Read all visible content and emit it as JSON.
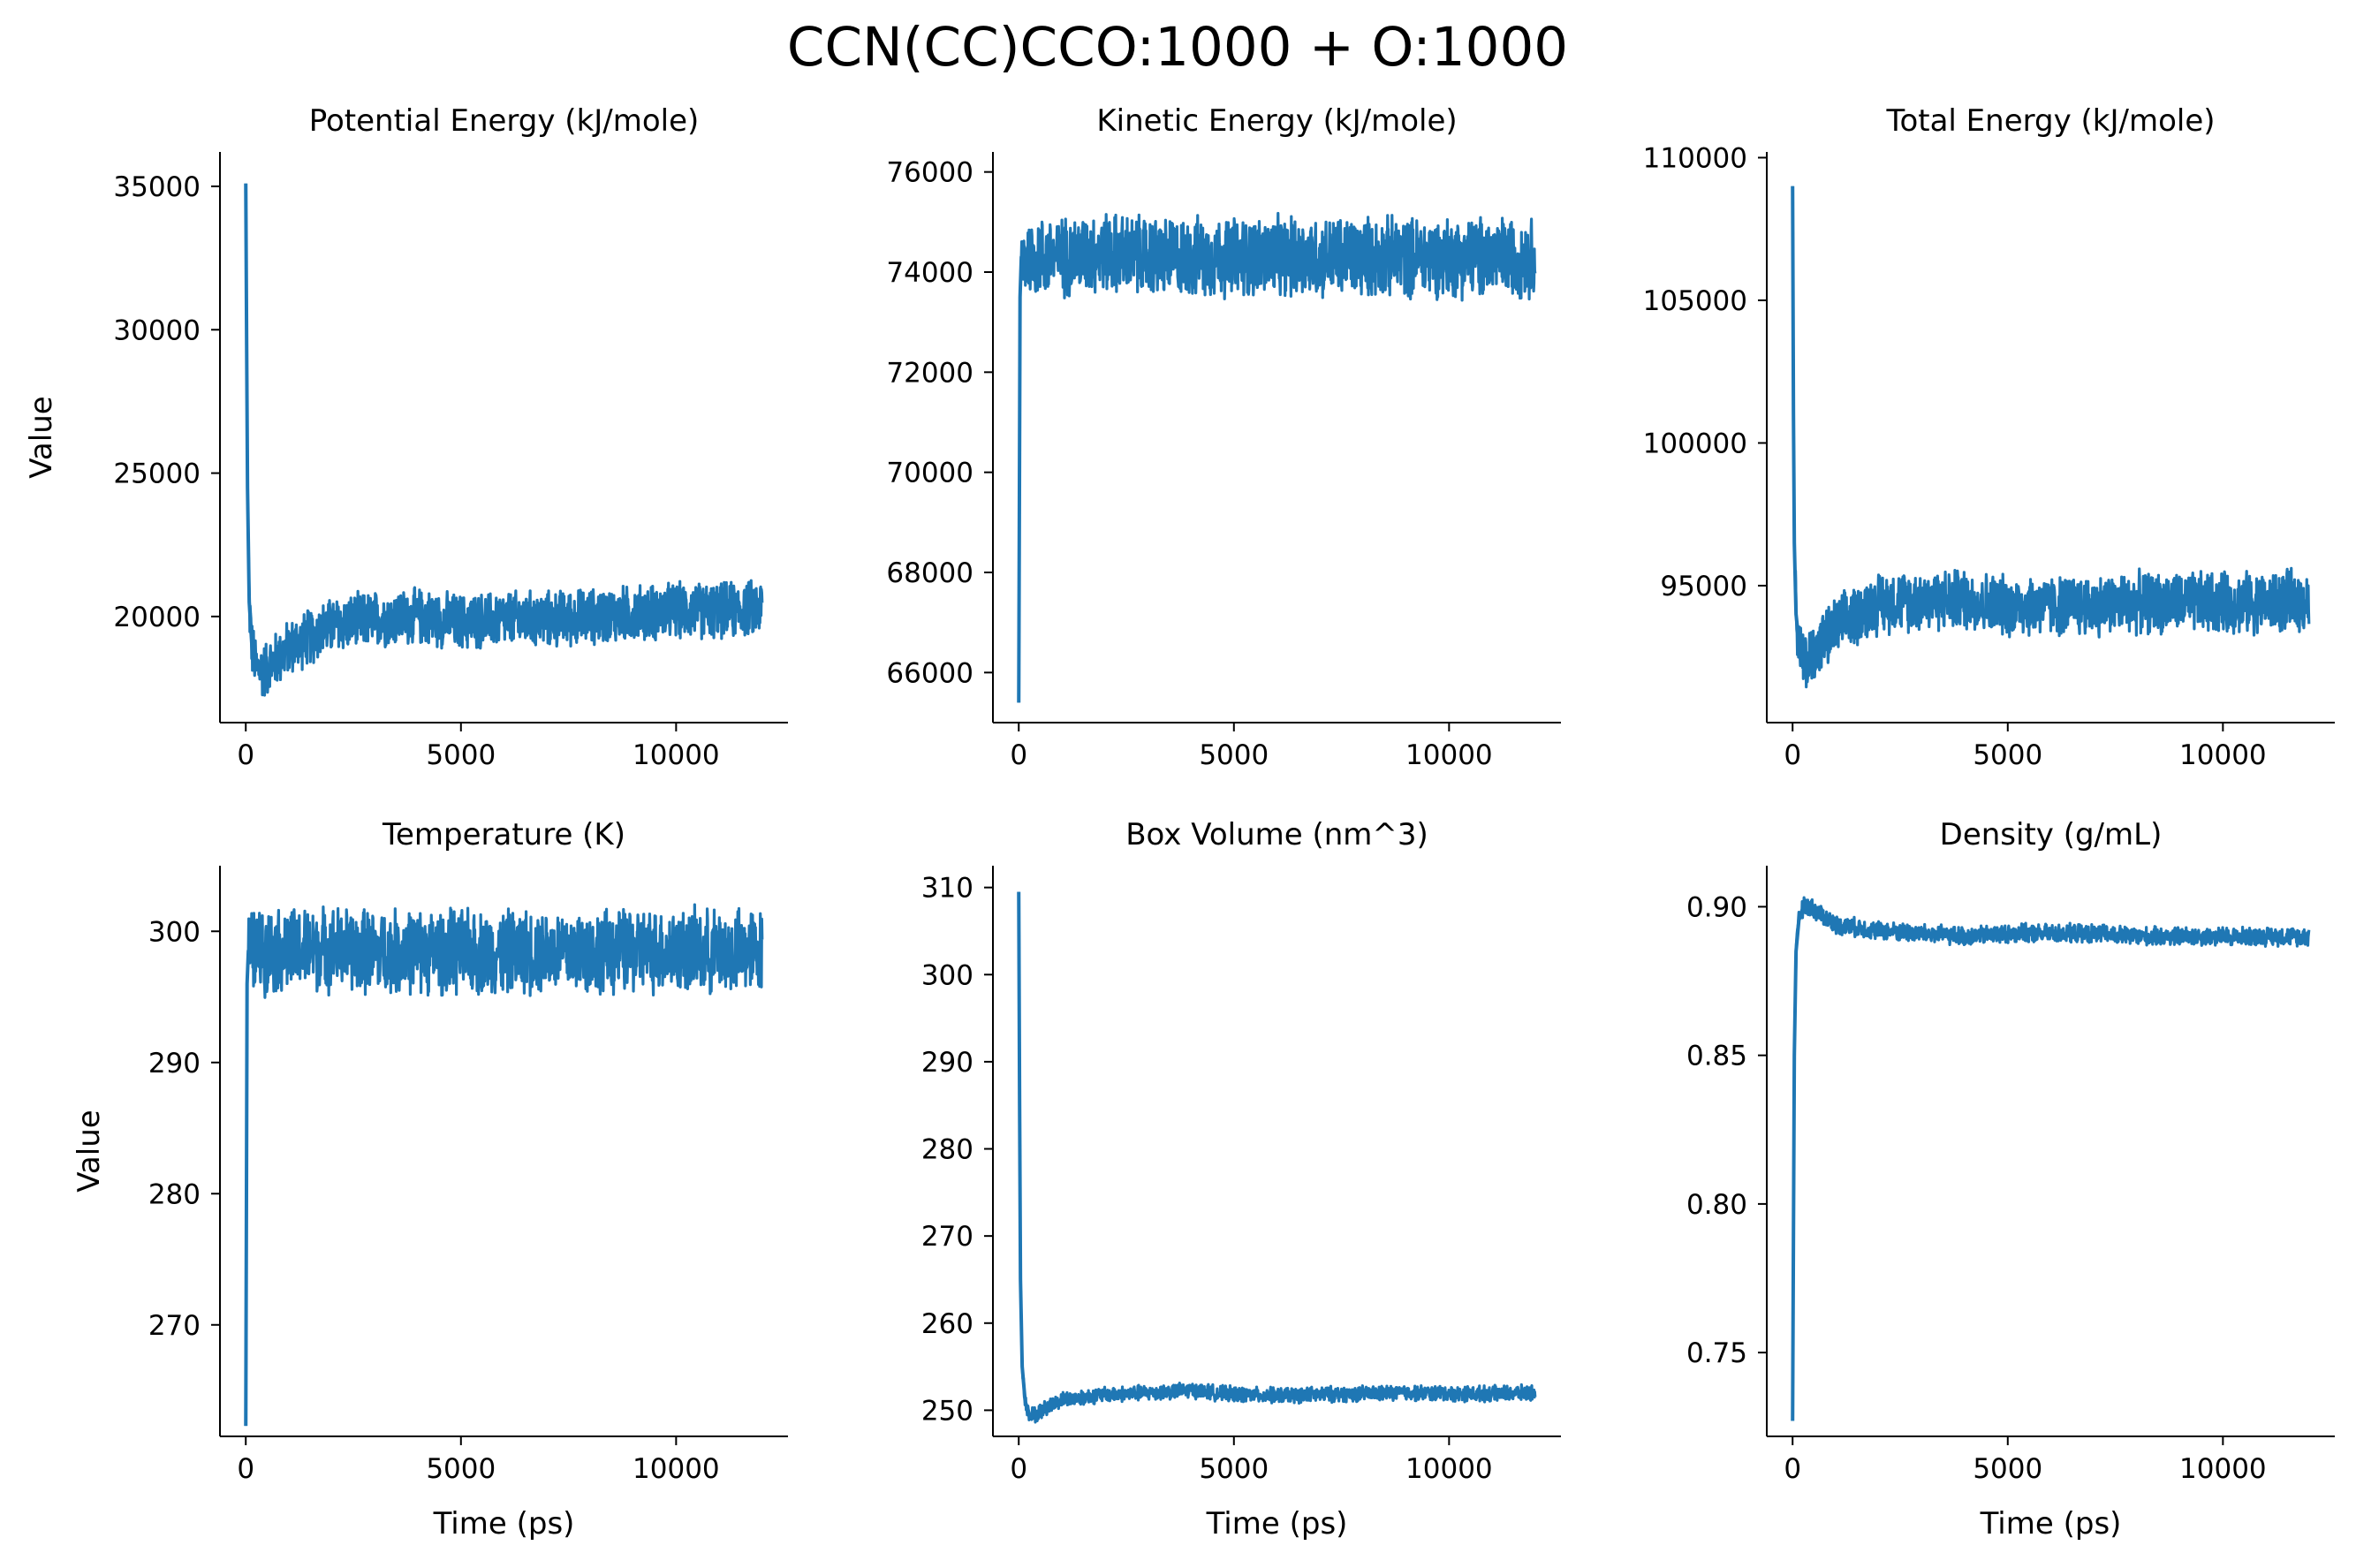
{
  "figure": {
    "suptitle": "CCN(CC)CCO:1000 + O:1000",
    "line_color": "#1f77b4"
  },
  "chart_data": [
    {
      "type": "line",
      "title": "Potential Energy (kJ/mole)",
      "xlabel": "",
      "ylabel": "Value",
      "xlim": [
        -600,
        12600
      ],
      "ylim": [
        16300,
        36200
      ],
      "xticks": [
        0,
        5000,
        10000
      ],
      "yticks": [
        20000,
        25000,
        30000,
        35000
      ],
      "ytick_labels": [
        "20000",
        "25000",
        "30000",
        "35000"
      ],
      "series": [
        {
          "x": [
            0,
            20,
            40,
            80,
            150,
            250,
            400,
            700,
            1000,
            1500,
            2000,
            3000,
            4000,
            5000,
            6000,
            7000,
            8000,
            9000,
            10000,
            11000,
            12000
          ],
          "y": [
            35100,
            29500,
            24500,
            20500,
            18800,
            18200,
            18100,
            18500,
            18900,
            19300,
            19700,
            19900,
            20000,
            19800,
            19900,
            19900,
            20000,
            20100,
            20200,
            20200,
            20300
          ],
          "noise": 1100
        }
      ]
    },
    {
      "type": "line",
      "title": "Kinetic Energy (kJ/mole)",
      "xlabel": "",
      "ylabel": "",
      "xlim": [
        -600,
        12600
      ],
      "ylim": [
        65000,
        76400
      ],
      "xticks": [
        0,
        5000,
        10000
      ],
      "yticks": [
        66000,
        68000,
        70000,
        72000,
        74000,
        76000
      ],
      "ytick_labels": [
        "66000",
        "68000",
        "70000",
        "72000",
        "74000",
        "76000"
      ],
      "series": [
        {
          "x": [
            0,
            30,
            60,
            100,
            300,
            1000,
            2000,
            3000,
            4000,
            5000,
            6000,
            7000,
            8000,
            9000,
            10000,
            11000,
            12000
          ],
          "y": [
            65400,
            73500,
            74300,
            74300,
            74300,
            74300,
            74400,
            74300,
            74300,
            74300,
            74300,
            74300,
            74300,
            74300,
            74300,
            74300,
            74300
          ],
          "noise": 900
        }
      ]
    },
    {
      "type": "line",
      "title": "Total Energy (kJ/mole)",
      "xlabel": "",
      "ylabel": "",
      "xlim": [
        -600,
        12600
      ],
      "ylim": [
        90200,
        110200
      ],
      "xticks": [
        0,
        5000,
        10000
      ],
      "yticks": [
        95000,
        100000,
        105000,
        110000
      ],
      "ytick_labels": [
        "95000",
        "100000",
        "105000",
        "110000"
      ],
      "series": [
        {
          "x": [
            0,
            20,
            40,
            80,
            150,
            250,
            400,
            700,
            1000,
            1500,
            2000,
            3000,
            4000,
            5000,
            6000,
            7000,
            8000,
            9000,
            10000,
            11000,
            12000
          ],
          "y": [
            109000,
            101000,
            96500,
            94000,
            93000,
            92300,
            92500,
            93000,
            93500,
            94000,
            94400,
            94500,
            94500,
            94300,
            94300,
            94300,
            94400,
            94400,
            94400,
            94400,
            94500
          ],
          "noise": 1200
        }
      ]
    },
    {
      "type": "line",
      "title": "Temperature (K)",
      "xlabel": "Time (ps)",
      "ylabel": "Value",
      "xlim": [
        -600,
        12600
      ],
      "ylim": [
        261500,
        305000
      ],
      "ylim_display": [
        261.5,
        305.0
      ],
      "xticks": [
        0,
        5000,
        10000
      ],
      "yticks": [
        270000,
        280000,
        290000,
        300000
      ],
      "ytick_labels": [
        "270",
        "280",
        "290",
        "300"
      ],
      "series": [
        {
          "x": [
            0,
            30,
            60,
            100,
            300,
            1000,
            2000,
            3000,
            4000,
            5000,
            6000,
            7000,
            8000,
            9000,
            10000,
            11000,
            12000
          ],
          "y": [
            262300,
            296000,
            298500,
            298500,
            298500,
            298500,
            298700,
            298400,
            298500,
            298400,
            298400,
            298500,
            298400,
            298500,
            298500,
            298400,
            298500
          ],
          "noise": 3600
        }
      ]
    },
    {
      "type": "line",
      "title": "Box Volume (nm^3)",
      "xlabel": "Time (ps)",
      "ylabel": "",
      "xlim": [
        -600,
        12600
      ],
      "ylim": [
        247000,
        312500
      ],
      "xticks": [
        0,
        5000,
        10000
      ],
      "yticks": [
        250000,
        260000,
        270000,
        280000,
        290000,
        300000,
        310000
      ],
      "ytick_labels": [
        "250",
        "260",
        "270",
        "280",
        "290",
        "300",
        "310"
      ],
      "series": [
        {
          "x": [
            0,
            20,
            40,
            80,
            150,
            250,
            400,
            700,
            1000,
            2000,
            3000,
            4000,
            5000,
            6000,
            7000,
            8000,
            9000,
            10000,
            11000,
            12000
          ],
          "y": [
            309500,
            285000,
            265000,
            255000,
            251000,
            249500,
            249500,
            250500,
            251200,
            251800,
            252000,
            252300,
            251800,
            251700,
            251800,
            251900,
            252000,
            251900,
            251900,
            252000
          ],
          "noise": 1000
        }
      ]
    },
    {
      "type": "line",
      "title": "Density (g/mL)",
      "xlabel": "Time (ps)",
      "ylabel": "",
      "xlim": [
        -600,
        12600
      ],
      "ylim": [
        0.7218,
        0.9138
      ],
      "xticks": [
        0,
        5000,
        10000
      ],
      "yticks": [
        0.75,
        0.8,
        0.85,
        0.9
      ],
      "ytick_labels": [
        "0.75",
        "0.80",
        "0.85",
        "0.90"
      ],
      "series": [
        {
          "x": [
            0,
            20,
            40,
            80,
            150,
            250,
            400,
            700,
            1000,
            2000,
            3000,
            4000,
            5000,
            6000,
            7000,
            8000,
            9000,
            10000,
            11000,
            12000
          ],
          "y": [
            0.727,
            0.79,
            0.85,
            0.885,
            0.896,
            0.9,
            0.9,
            0.897,
            0.894,
            0.892,
            0.891,
            0.89,
            0.891,
            0.891,
            0.891,
            0.89,
            0.89,
            0.89,
            0.89,
            0.89
          ],
          "noise": 0.0035
        }
      ]
    }
  ]
}
